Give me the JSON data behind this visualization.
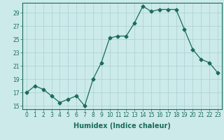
{
  "x": [
    0,
    1,
    2,
    3,
    4,
    5,
    6,
    7,
    8,
    9,
    10,
    11,
    12,
    13,
    14,
    15,
    16,
    17,
    18,
    19,
    20,
    21,
    22,
    23
  ],
  "y": [
    17,
    18,
    17.5,
    16.5,
    15.5,
    16,
    16.5,
    15,
    19,
    21.5,
    25.2,
    25.5,
    25.5,
    27.5,
    30,
    29.2,
    29.5,
    29.5,
    29.5,
    26.5,
    23.5,
    22,
    21.5,
    20
  ],
  "line_color": "#1a6b5a",
  "marker": "D",
  "marker_size": 2.5,
  "bg_color": "#cceaea",
  "grid_color": "#aacfcf",
  "xlabel": "Humidex (Indice chaleur)",
  "xlim": [
    -0.5,
    23.5
  ],
  "ylim": [
    14.5,
    30.5
  ],
  "yticks": [
    15,
    17,
    19,
    21,
    23,
    25,
    27,
    29
  ],
  "xticks": [
    0,
    1,
    2,
    3,
    4,
    5,
    6,
    7,
    8,
    9,
    10,
    11,
    12,
    13,
    14,
    15,
    16,
    17,
    18,
    19,
    20,
    21,
    22,
    23
  ],
  "xlabel_fontsize": 7,
  "tick_fontsize": 5.5
}
